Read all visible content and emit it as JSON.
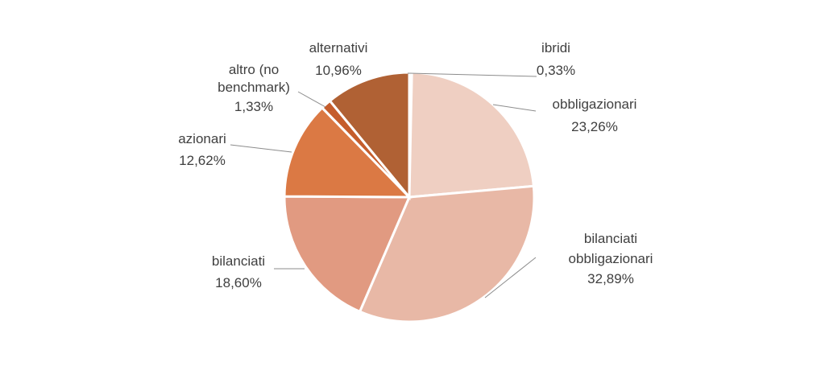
{
  "chart_data": {
    "type": "pie",
    "start_angle_deg": 0,
    "direction": "clockwise",
    "slices": [
      {
        "label": "ibridi",
        "value": 0.33,
        "value_text": "0,33%",
        "color": "#f2ddd3"
      },
      {
        "label": "obbligazionari",
        "value": 23.26,
        "value_text": "23,26%",
        "color": "#efcfc2"
      },
      {
        "label": "bilanciati obbligazionari",
        "value": 32.89,
        "value_text": "32,89%",
        "color": "#e8b8a6"
      },
      {
        "label": "bilanciati",
        "value": 18.6,
        "value_text": "18,60%",
        "color": "#e19a81"
      },
      {
        "label": "azionari",
        "value": 12.62,
        "value_text": "12,62%",
        "color": "#db7944"
      },
      {
        "label": "altro (no benchmark)",
        "value": 1.33,
        "value_text": "1,33%",
        "color": "#c55d2c"
      },
      {
        "label": "alternativi",
        "value": 10.96,
        "value_text": "10,96%",
        "color": "#b06134"
      }
    ]
  }
}
